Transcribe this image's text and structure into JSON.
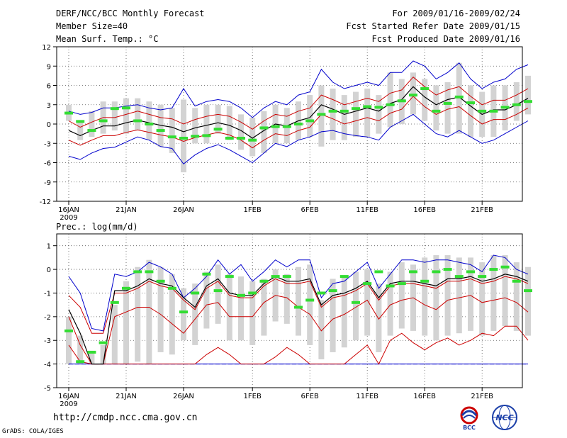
{
  "header": {
    "title": "DERF/NCC/BCC Monthly Forecast",
    "member_size": "Member Size=40",
    "variable": "Mean Surf. Temp.: °C",
    "period": "For 2009/01/16-2009/02/24",
    "start_date": "Fcst Started Refer Date 2009/01/15",
    "produced_date": "Fcst Produced Date 2009/01/16"
  },
  "footer": {
    "url": "http://cmdp.ncc.cma.gov.cn",
    "credit": "GrADS: COLA/IGES",
    "logo_bcc": "BCC",
    "logo_ncc": "NCC"
  },
  "colors": {
    "box": "#d3d3d3",
    "obs": "#33dd33",
    "envelope": "#0000cc",
    "spread": "#cc0000",
    "mean": "#000000",
    "grid": "#555555"
  },
  "chart_data": [
    {
      "type": "box-ensemble",
      "title": "Mean Surf. Temp.: °C",
      "ylim": [
        -12,
        12
      ],
      "yticks": [
        -12,
        -9,
        -6,
        -3,
        0,
        3,
        6,
        9,
        12
      ],
      "ytick_labels": [
        "-12",
        "-9",
        "-6",
        "-3",
        "0",
        "3",
        "6",
        "9",
        "12"
      ],
      "xticks": [
        "16JAN",
        "21JAN",
        "26JAN",
        "1FEB",
        "6FEB",
        "11FEB",
        "16FEB",
        "21FEB"
      ],
      "xtick_days": [
        0,
        5,
        10,
        16,
        21,
        26,
        31,
        36
      ],
      "year_label": "2009",
      "days": 40,
      "mean": [
        -1.0,
        -1.8,
        -1.0,
        -0.3,
        -0.3,
        0.2,
        0.6,
        0.2,
        -0.2,
        -0.5,
        -1.2,
        -0.6,
        -0.2,
        0.2,
        -0.2,
        -1.0,
        -2.2,
        -1.0,
        0.0,
        -0.3,
        0.5,
        1.0,
        3.0,
        2.3,
        1.5,
        2.0,
        2.5,
        2.0,
        3.2,
        3.8,
        5.8,
        4.2,
        3.0,
        3.8,
        4.2,
        2.8,
        1.5,
        2.2,
        2.2,
        3.0,
        4.0
      ],
      "spread_hi": [
        0.5,
        -0.5,
        0.3,
        1.0,
        1.0,
        1.5,
        2.0,
        1.5,
        1.0,
        0.8,
        0.0,
        0.7,
        1.2,
        1.5,
        1.2,
        0.3,
        -0.8,
        0.5,
        1.5,
        1.2,
        2.0,
        2.5,
        4.5,
        3.8,
        3.0,
        3.5,
        4.0,
        3.5,
        4.8,
        5.3,
        7.3,
        5.8,
        4.5,
        5.3,
        5.8,
        4.3,
        3.0,
        3.7,
        3.7,
        4.5,
        5.5
      ],
      "spread_lo": [
        -2.5,
        -3.3,
        -2.5,
        -1.8,
        -1.8,
        -1.3,
        -0.9,
        -1.3,
        -1.7,
        -2.0,
        -2.7,
        -2.1,
        -1.7,
        -1.3,
        -1.7,
        -2.5,
        -3.7,
        -2.5,
        -1.5,
        -1.8,
        -1.0,
        -0.5,
        1.5,
        0.8,
        0.0,
        0.5,
        1.0,
        0.5,
        1.7,
        2.3,
        4.3,
        2.7,
        1.5,
        2.3,
        2.7,
        1.3,
        0.0,
        0.7,
        0.7,
        1.5,
        2.5
      ],
      "env_hi": [
        2.0,
        1.5,
        1.8,
        2.5,
        2.5,
        2.8,
        3.0,
        2.5,
        2.2,
        2.5,
        5.5,
        2.8,
        3.5,
        3.8,
        3.5,
        2.5,
        1.0,
        2.5,
        3.5,
        3.0,
        4.5,
        5.0,
        8.5,
        6.5,
        5.5,
        6.0,
        6.5,
        6.0,
        8.0,
        8.0,
        9.8,
        9.0,
        7.0,
        8.0,
        9.5,
        7.0,
        5.5,
        6.5,
        7.0,
        8.5,
        9.2
      ],
      "env_lo": [
        -5.0,
        -5.5,
        -4.5,
        -3.8,
        -3.6,
        -2.8,
        -2.0,
        -2.5,
        -3.5,
        -3.8,
        -6.2,
        -4.8,
        -3.8,
        -3.2,
        -4.0,
        -5.0,
        -6.0,
        -4.5,
        -3.0,
        -3.5,
        -2.5,
        -2.0,
        -1.2,
        -1.0,
        -1.5,
        -1.8,
        -2.0,
        -2.5,
        -0.5,
        0.5,
        1.5,
        0.0,
        -1.5,
        -2.0,
        -1.0,
        -2.0,
        -3.0,
        -2.5,
        -1.5,
        -0.5,
        0.5
      ],
      "box_hi": [
        3.0,
        0.5,
        2.0,
        3.5,
        3.5,
        4.0,
        4.0,
        3.5,
        3.0,
        2.5,
        3.8,
        2.5,
        3.0,
        3.0,
        2.8,
        1.5,
        1.0,
        2.0,
        3.0,
        2.5,
        3.5,
        4.5,
        6.0,
        5.5,
        4.5,
        5.0,
        5.5,
        4.5,
        8.0,
        7.0,
        8.0,
        7.0,
        6.0,
        6.5,
        9.5,
        6.0,
        5.0,
        6.0,
        6.0,
        6.5,
        7.5
      ],
      "box_lo": [
        0.5,
        -2.5,
        -2.0,
        -1.5,
        -1.0,
        -1.5,
        -1.0,
        -2.5,
        -3.5,
        -4.5,
        -7.5,
        -3.0,
        -3.0,
        -1.5,
        -2.5,
        -4.0,
        -5.0,
        -4.5,
        -3.0,
        -3.0,
        -2.5,
        -2.0,
        -3.5,
        -2.5,
        -2.5,
        -2.0,
        -2.0,
        -1.5,
        -0.5,
        0.0,
        1.5,
        0.5,
        -1.0,
        -1.5,
        -1.5,
        -2.0,
        -2.0,
        -2.0,
        -1.0,
        0.5,
        1.5
      ],
      "obs": [
        1.7,
        0.4,
        -1.0,
        0.5,
        2.4,
        2.5,
        0.5,
        0.0,
        -1.0,
        -2.0,
        -2.2,
        -1.9,
        -1.8,
        -0.8,
        -2.2,
        -2.2,
        -2.5,
        -0.6,
        -0.4,
        -0.4,
        0.0,
        0.5,
        1.5,
        2.0,
        2.0,
        2.4,
        2.7,
        2.6,
        3.0,
        3.6,
        4.5,
        5.5,
        2.0,
        3.2,
        4.2,
        3.3,
        2.0,
        2.0,
        2.6,
        3.0,
        3.5
      ]
    },
    {
      "type": "box-ensemble",
      "title": "Prec.: log(mm/d)",
      "ylim": [
        -5,
        1.5
      ],
      "yticks": [
        -5,
        -4,
        -3,
        -2,
        -1,
        0,
        1
      ],
      "ytick_labels": [
        "-5",
        "-4",
        "-3",
        "-2",
        "-1",
        "0",
        "1"
      ],
      "xticks": [
        "16JAN",
        "21JAN",
        "26JAN",
        "1FEB",
        "6FEB",
        "11FEB",
        "16FEB",
        "21FEB"
      ],
      "xtick_days": [
        0,
        5,
        10,
        16,
        21,
        26,
        31,
        36
      ],
      "year_label": "2009",
      "days": 40,
      "floor": -4,
      "mean": [
        -1.7,
        -2.7,
        -4.0,
        -4.0,
        -0.9,
        -0.9,
        -0.7,
        -0.4,
        -0.6,
        -0.7,
        -1.2,
        -1.6,
        -0.7,
        -0.4,
        -1.0,
        -1.1,
        -1.1,
        -0.6,
        -0.3,
        -0.5,
        -0.5,
        -0.4,
        -1.5,
        -1.1,
        -1.0,
        -0.8,
        -0.5,
        -1.2,
        -0.6,
        -0.5,
        -0.5,
        -0.6,
        -0.7,
        -0.4,
        -0.4,
        -0.3,
        -0.5,
        -0.4,
        -0.2,
        -0.3,
        -0.5
      ],
      "spread_hi": [
        -1.1,
        -1.6,
        -2.7,
        -2.7,
        -1.0,
        -1.0,
        -0.8,
        -0.5,
        -0.7,
        -0.8,
        -1.3,
        -1.7,
        -0.8,
        -0.5,
        -1.1,
        -1.2,
        -1.2,
        -0.7,
        -0.4,
        -0.6,
        -0.6,
        -0.5,
        -1.6,
        -1.2,
        -1.1,
        -0.9,
        -0.6,
        -1.3,
        -0.7,
        -0.6,
        -0.6,
        -0.7,
        -0.8,
        -0.5,
        -0.5,
        -0.4,
        -0.6,
        -0.5,
        -0.3,
        -0.4,
        -0.6
      ],
      "spread_lo": [
        -2.0,
        -3.2,
        -4.0,
        -4.0,
        -2.0,
        -1.8,
        -1.6,
        -1.6,
        -1.9,
        -2.3,
        -2.7,
        -2.1,
        -1.5,
        -1.4,
        -2.0,
        -2.0,
        -2.0,
        -1.4,
        -1.1,
        -1.2,
        -1.6,
        -1.9,
        -2.6,
        -2.1,
        -1.9,
        -1.6,
        -1.3,
        -2.1,
        -1.5,
        -1.3,
        -1.2,
        -1.5,
        -1.7,
        -1.3,
        -1.2,
        -1.1,
        -1.4,
        -1.3,
        -1.2,
        -1.4,
        -1.8
      ],
      "spread_lo2": [
        -3.2,
        -3.9,
        -4.0,
        -4.0,
        -4.0,
        -4.0,
        -4.0,
        -4.0,
        -4.0,
        -4.0,
        -4.0,
        -4.0,
        -3.6,
        -3.3,
        -3.6,
        -4.0,
        -4.0,
        -4.0,
        -3.7,
        -3.3,
        -3.6,
        -4.0,
        -4.0,
        -4.0,
        -4.0,
        -3.6,
        -3.2,
        -4.0,
        -3.0,
        -2.7,
        -3.1,
        -3.4,
        -3.1,
        -2.9,
        -3.2,
        -3.0,
        -2.7,
        -2.8,
        -2.4,
        -2.4,
        -3.0
      ],
      "env_hi": [
        -0.3,
        -1.0,
        -2.5,
        -2.6,
        -0.2,
        -0.3,
        -0.1,
        0.3,
        0.1,
        -0.2,
        -1.2,
        -0.8,
        -0.3,
        0.4,
        -0.2,
        0.2,
        -0.5,
        -0.1,
        0.4,
        0.1,
        0.4,
        0.4,
        -1.2,
        -0.6,
        -0.5,
        -0.1,
        0.3,
        -0.8,
        -0.2,
        0.4,
        0.4,
        0.3,
        0.4,
        0.4,
        0.3,
        0.2,
        -0.1,
        0.6,
        0.5,
        0.0,
        -0.2
      ],
      "env_lo": [
        -4.0,
        -4.0,
        -4.0,
        -4.0,
        -4.0,
        -4.0,
        -4.0,
        -4.0,
        -4.0,
        -4.0,
        -4.0,
        -4.0,
        -4.0,
        -4.0,
        -4.0,
        -4.0,
        -4.0,
        -4.0,
        -4.0,
        -4.0,
        -4.0,
        -4.0,
        -4.0,
        -4.0,
        -4.0,
        -4.0,
        -4.0,
        -4.0,
        -4.0,
        -4.0,
        -4.0,
        -4.0,
        -4.0,
        -4.0,
        -4.0,
        -4.0,
        -4.0,
        -4.0,
        -4.0,
        -4.0,
        -4.0
      ],
      "box_hi": [
        -2.0,
        -2.8,
        -3.5,
        -3.2,
        -1.5,
        -0.5,
        0.1,
        0.4,
        0.1,
        -0.2,
        -0.8,
        -0.6,
        -0.1,
        0.2,
        -0.2,
        -0.3,
        -0.5,
        -0.4,
        0.0,
        -0.2,
        0.1,
        0.2,
        -1.3,
        -0.4,
        -0.3,
        -0.1,
        0.0,
        -0.6,
        -0.1,
        0.3,
        0.2,
        0.5,
        0.6,
        0.6,
        0.5,
        0.5,
        0.3,
        0.6,
        0.6,
        0.3,
        0.1
      ],
      "box_lo": [
        -4.0,
        -4.0,
        -4.0,
        -4.0,
        -4.0,
        -4.0,
        -3.9,
        -4.0,
        -3.5,
        -3.6,
        -3.0,
        -3.2,
        -2.5,
        -2.3,
        -3.0,
        -3.0,
        -3.2,
        -2.8,
        -2.2,
        -2.3,
        -2.8,
        -3.2,
        -3.8,
        -3.5,
        -3.3,
        -3.0,
        -2.8,
        -3.5,
        -2.8,
        -2.5,
        -2.6,
        -2.8,
        -3.0,
        -2.8,
        -2.7,
        -2.6,
        -2.8,
        -2.6,
        -2.4,
        -2.6,
        -2.8
      ],
      "obs": [
        -2.6,
        -3.9,
        -3.5,
        -3.1,
        -1.4,
        -0.8,
        -0.1,
        -0.1,
        -0.5,
        -0.8,
        -1.8,
        -1.0,
        -0.2,
        -0.9,
        -0.3,
        -1.1,
        -1.0,
        -0.5,
        -0.3,
        -0.3,
        -1.6,
        -1.3,
        -1.0,
        -0.9,
        -0.3,
        -1.4,
        -0.6,
        -0.1,
        -0.7,
        -0.6,
        -0.1,
        -0.5,
        -0.1,
        0.0,
        -0.3,
        -0.1,
        -0.3,
        0.0,
        0.1,
        -0.5,
        -0.9
      ]
    }
  ]
}
